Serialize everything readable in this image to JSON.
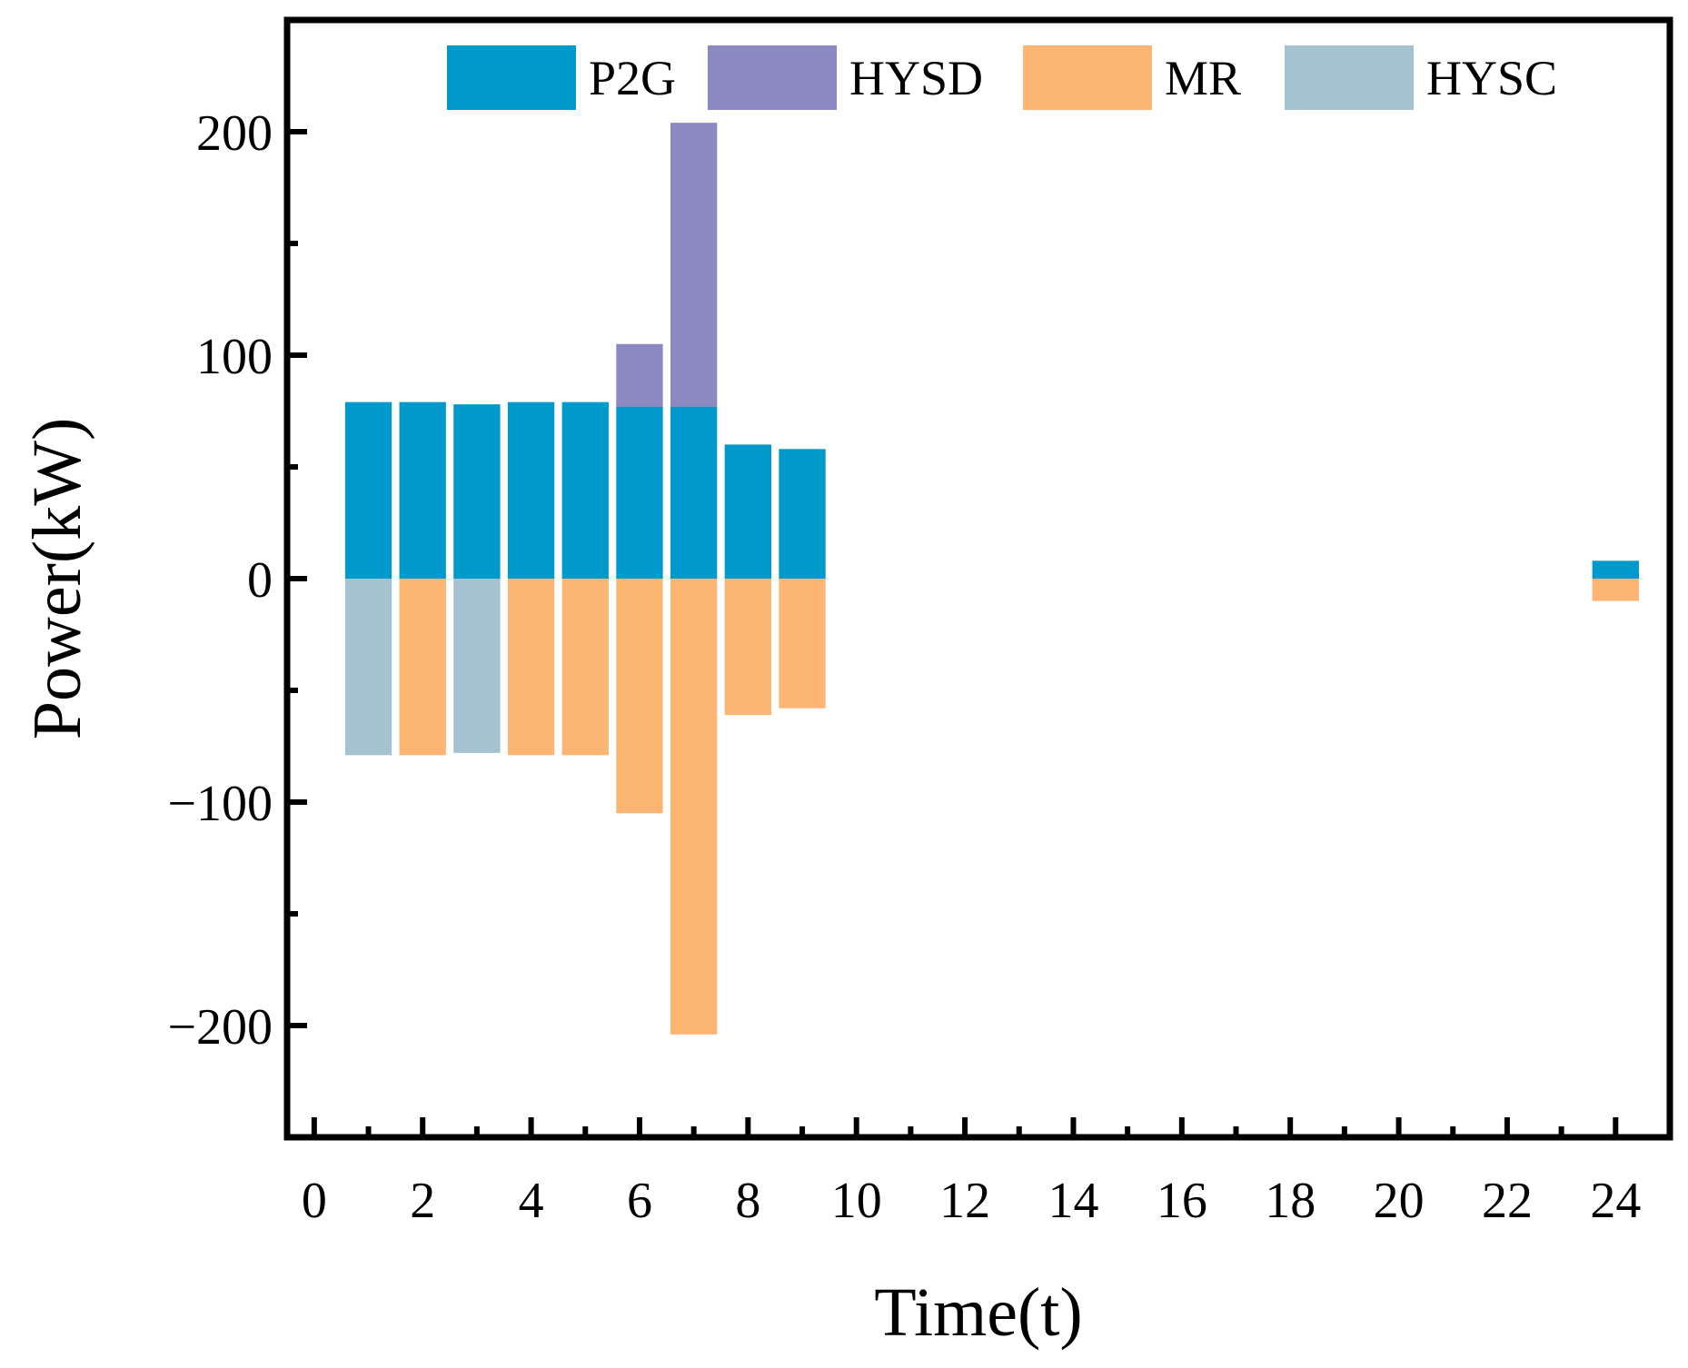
{
  "chart_data": {
    "type": "bar",
    "stacked": true,
    "title": "",
    "xlabel": "Time(t)",
    "ylabel": "Power(kW)",
    "xlim": [
      -0.5,
      25
    ],
    "ylim": [
      -250,
      250
    ],
    "xticks": [
      0,
      2,
      4,
      6,
      8,
      10,
      12,
      14,
      16,
      18,
      20,
      22,
      24
    ],
    "xtick_labels": [
      "0",
      "2",
      "4",
      "6",
      "8",
      "10",
      "12",
      "14",
      "16",
      "18",
      "20",
      "22",
      "24"
    ],
    "yticks": [
      -200,
      -100,
      0,
      100,
      200
    ],
    "ytick_labels": [
      "−200",
      "−100",
      "0",
      "100",
      "200"
    ],
    "x": [
      1,
      2,
      3,
      4,
      5,
      6,
      7,
      8,
      9,
      24
    ],
    "series": [
      {
        "name": "P2G",
        "color": "#0099cc",
        "values": [
          79,
          79,
          78,
          79,
          79,
          77,
          77,
          60,
          58,
          8
        ]
      },
      {
        "name": "HYSD",
        "color": "#8c88c1",
        "values": [
          0,
          0,
          0,
          0,
          0,
          28,
          127,
          0,
          0,
          0
        ]
      },
      {
        "name": "MR",
        "color": "#fdb574",
        "values": [
          0,
          -79,
          0,
          -79,
          -79,
          -105,
          -204,
          -61,
          -58,
          -10
        ]
      },
      {
        "name": "HYSC",
        "color": "#a4c2cf",
        "values": [
          -79,
          0,
          -78,
          0,
          0,
          0,
          0,
          0,
          0,
          0
        ]
      }
    ],
    "legend": {
      "position": "top",
      "entries": [
        "P2G",
        "HYSD",
        "MR",
        "HYSC"
      ]
    },
    "grid": false
  }
}
